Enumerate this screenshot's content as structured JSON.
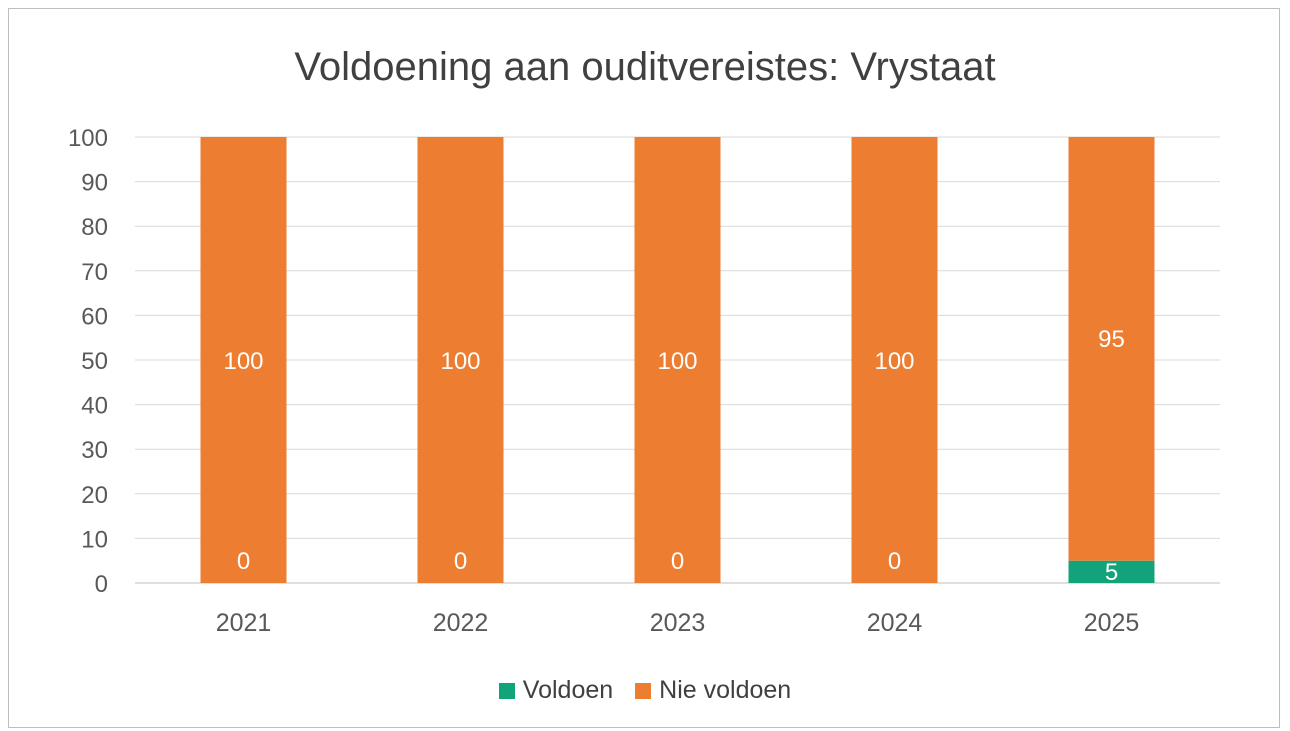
{
  "chart_data": {
    "type": "bar",
    "stacked": true,
    "title": "Voldoening aan ouditvereistes: Vrystaat",
    "xlabel": "",
    "ylabel": "",
    "categories": [
      "2021",
      "2022",
      "2023",
      "2024",
      "2025"
    ],
    "ylim": [
      0,
      100
    ],
    "yticks": [
      0,
      10,
      20,
      30,
      40,
      50,
      60,
      70,
      80,
      90,
      100
    ],
    "grid": true,
    "legend_position": "bottom",
    "series": [
      {
        "name": "Voldoen",
        "color": "#12a37a",
        "values": [
          0,
          0,
          0,
          0,
          5
        ]
      },
      {
        "name": "Nie voldoen",
        "color": "#ed7d31",
        "values": [
          100,
          100,
          100,
          100,
          95
        ]
      }
    ]
  }
}
